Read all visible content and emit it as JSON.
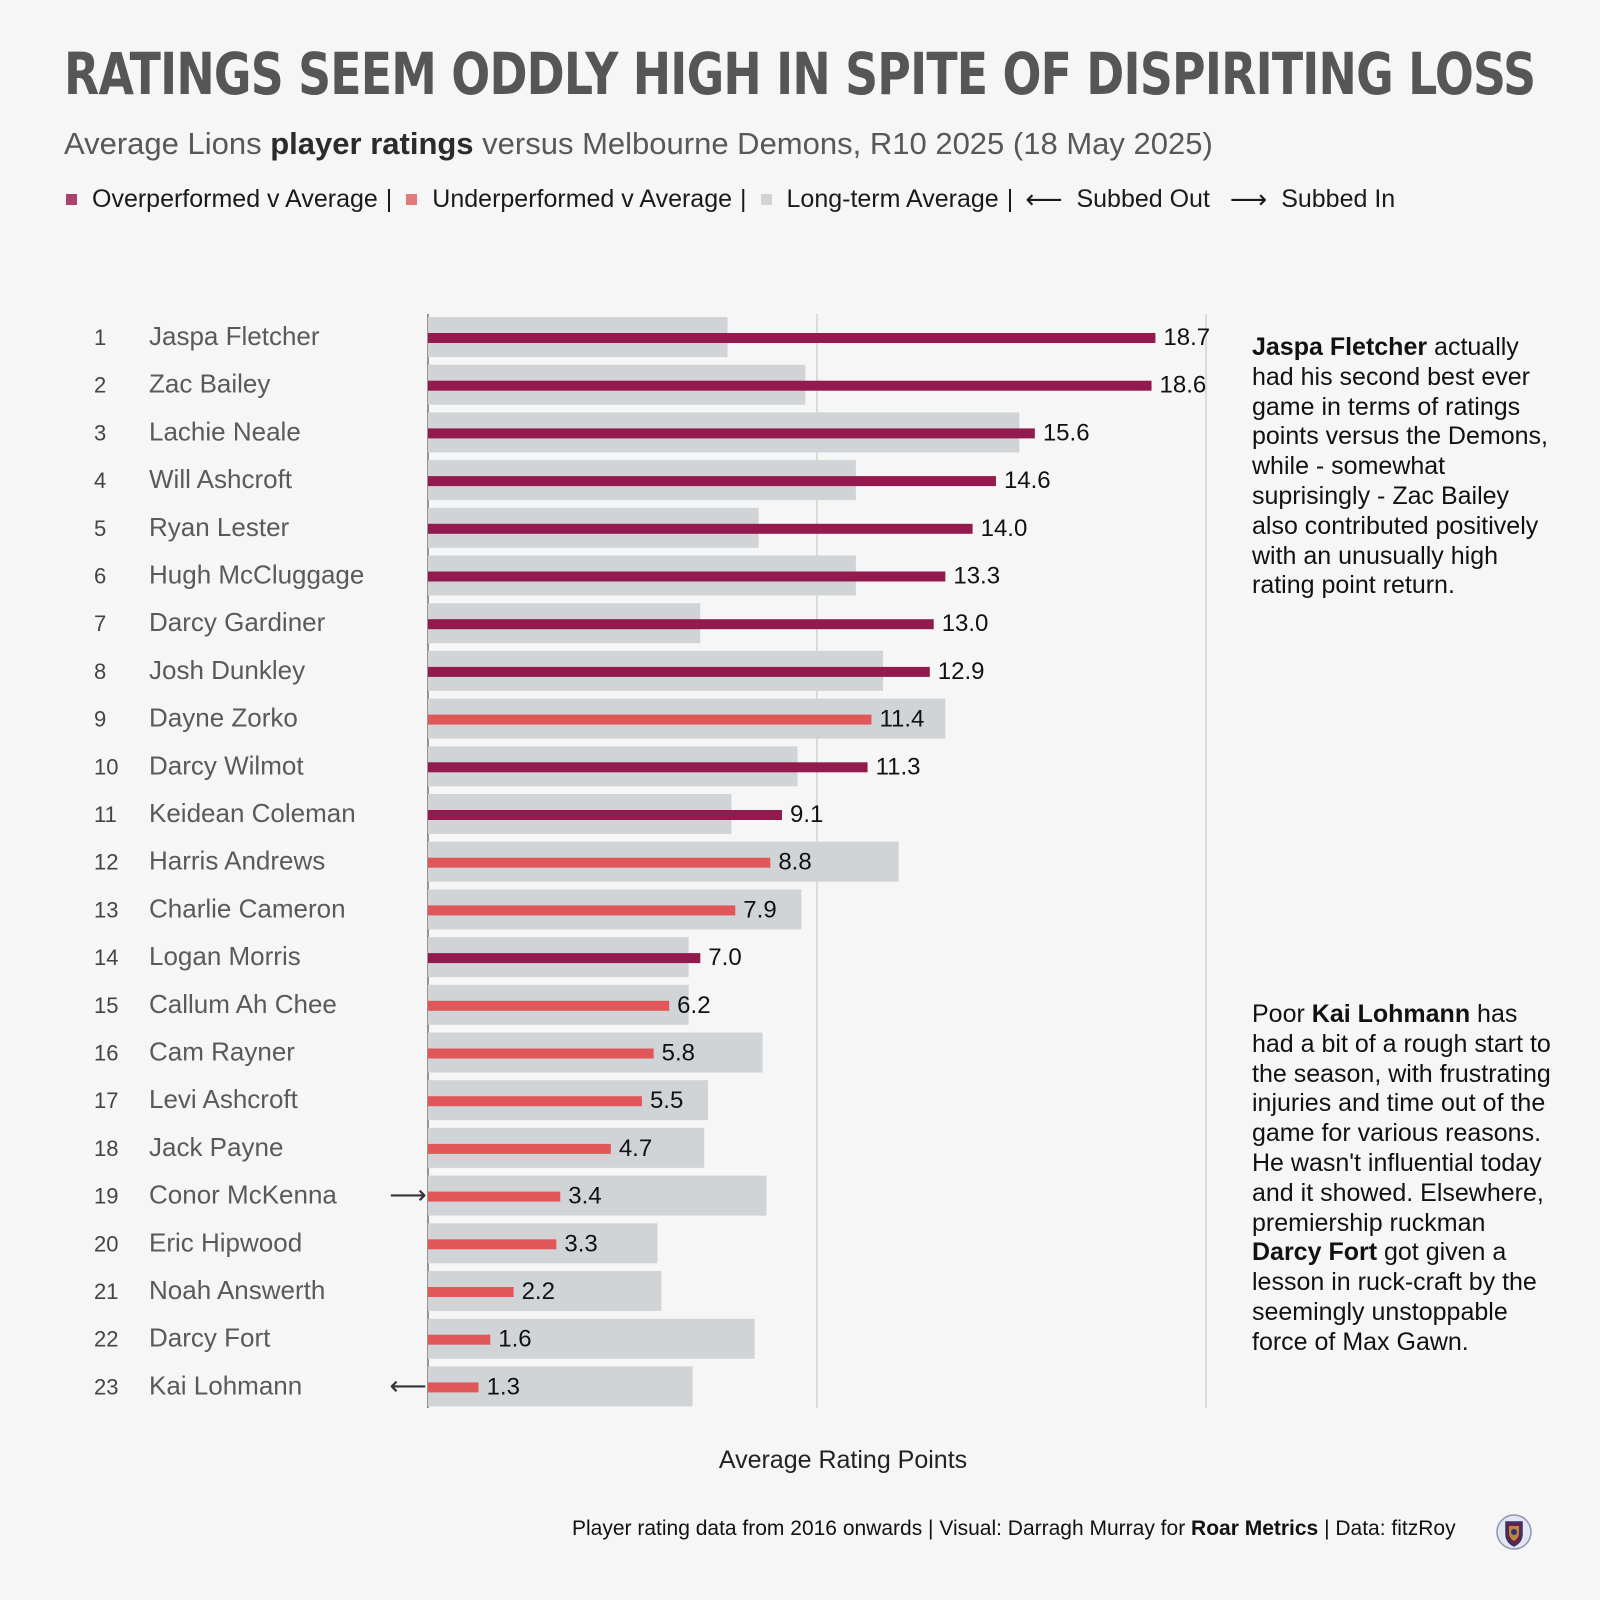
{
  "title": "RATINGS SEEM ODDLY HIGH IN SPITE OF DISPIRITING LOSS",
  "subtitle": {
    "pre": "Average Lions ",
    "bold": "player ratings",
    "post": " versus Melbourne Demons, R10 2025 (18 May 2025)"
  },
  "legend": {
    "over": "Overperformed v Average",
    "under": "Underperformed v Average",
    "avg": "Long-term Average",
    "subbed_out": "Subbed Out",
    "subbed_in": "Subbed In",
    "separator": "|"
  },
  "colors": {
    "over": "#931a4e",
    "under": "#e15759",
    "avg": "#d0d4d7",
    "gridline": "#c9cbc4",
    "background": "#f6f6f6"
  },
  "chart_data": {
    "type": "bar",
    "orientation": "horizontal",
    "xlabel": "Average Rating Points",
    "xlim": [
      0,
      20
    ],
    "gridlines": [
      0,
      10,
      20
    ],
    "players": [
      {
        "rank": "1",
        "name": "Jaspa Fletcher",
        "value": 18.7,
        "avg": 7.7,
        "status": "over",
        "sub": ""
      },
      {
        "rank": "2",
        "name": "Zac Bailey",
        "value": 18.6,
        "avg": 9.7,
        "status": "over",
        "sub": ""
      },
      {
        "rank": "3",
        "name": "Lachie Neale",
        "value": 15.6,
        "avg": 15.2,
        "status": "over",
        "sub": ""
      },
      {
        "rank": "4",
        "name": "Will Ashcroft",
        "value": 14.6,
        "avg": 11.0,
        "status": "over",
        "sub": ""
      },
      {
        "rank": "5",
        "name": "Ryan Lester",
        "value": 14.0,
        "avg": 8.5,
        "status": "over",
        "sub": ""
      },
      {
        "rank": "6",
        "name": "Hugh McCluggage",
        "value": 13.3,
        "avg": 11.0,
        "status": "over",
        "sub": ""
      },
      {
        "rank": "7",
        "name": "Darcy Gardiner",
        "value": 13.0,
        "avg": 7.0,
        "status": "over",
        "sub": ""
      },
      {
        "rank": "8",
        "name": "Josh Dunkley",
        "value": 12.9,
        "avg": 11.7,
        "status": "over",
        "sub": ""
      },
      {
        "rank": "9",
        "name": "Dayne Zorko",
        "value": 11.4,
        "avg": 13.3,
        "status": "under",
        "sub": ""
      },
      {
        "rank": "10",
        "name": "Darcy Wilmot",
        "value": 11.3,
        "avg": 9.5,
        "status": "over",
        "sub": ""
      },
      {
        "rank": "11",
        "name": "Keidean Coleman",
        "value": 9.1,
        "avg": 7.8,
        "status": "over",
        "sub": ""
      },
      {
        "rank": "12",
        "name": "Harris Andrews",
        "value": 8.8,
        "avg": 12.1,
        "status": "under",
        "sub": ""
      },
      {
        "rank": "13",
        "name": "Charlie Cameron",
        "value": 7.9,
        "avg": 9.6,
        "status": "under",
        "sub": ""
      },
      {
        "rank": "14",
        "name": "Logan Morris",
        "value": 7.0,
        "avg": 6.7,
        "status": "over",
        "sub": ""
      },
      {
        "rank": "15",
        "name": "Callum Ah Chee",
        "value": 6.2,
        "avg": 6.7,
        "status": "under",
        "sub": ""
      },
      {
        "rank": "16",
        "name": "Cam Rayner",
        "value": 5.8,
        "avg": 8.6,
        "status": "under",
        "sub": ""
      },
      {
        "rank": "17",
        "name": "Levi Ashcroft",
        "value": 5.5,
        "avg": 7.2,
        "status": "under",
        "sub": ""
      },
      {
        "rank": "18",
        "name": "Jack Payne",
        "value": 4.7,
        "avg": 7.1,
        "status": "under",
        "sub": ""
      },
      {
        "rank": "19",
        "name": "Conor McKenna",
        "value": 3.4,
        "avg": 8.7,
        "status": "under",
        "sub": "in"
      },
      {
        "rank": "20",
        "name": "Eric Hipwood",
        "value": 3.3,
        "avg": 5.9,
        "status": "under",
        "sub": ""
      },
      {
        "rank": "21",
        "name": "Noah Answerth",
        "value": 2.2,
        "avg": 6.0,
        "status": "under",
        "sub": ""
      },
      {
        "rank": "22",
        "name": "Darcy Fort",
        "value": 1.6,
        "avg": 8.4,
        "status": "under",
        "sub": ""
      },
      {
        "rank": "23",
        "name": "Kai Lohmann",
        "value": 1.3,
        "avg": 6.8,
        "status": "under",
        "sub": "out"
      }
    ]
  },
  "annotation1": {
    "bold": "Jaspa Fletcher",
    "text": " actually had his second best ever game in terms of ratings points versus the Demons, while - somewhat suprisingly - Zac Bailey also contributed positively with an unusually high rating point return."
  },
  "annotation2": {
    "pre": "Poor ",
    "bold1": "Kai Lohmann",
    "mid": " has had a bit of a rough start to the season, with frustrating injuries and time out of the game for various reasons. He wasn't influential today and it showed. Elsewhere, premiership ruckman ",
    "bold2": "Darcy Fort",
    "post": " got given a lesson in ruck-craft by the seemingly unstoppable force of Max Gawn."
  },
  "footer": {
    "pre": "Player rating data from 2016 onwards | Visual: Darragh Murray for ",
    "bold": "Roar Metrics",
    "post": " | Data: fitzRoy"
  },
  "logo_icon": "club-crest-icon"
}
